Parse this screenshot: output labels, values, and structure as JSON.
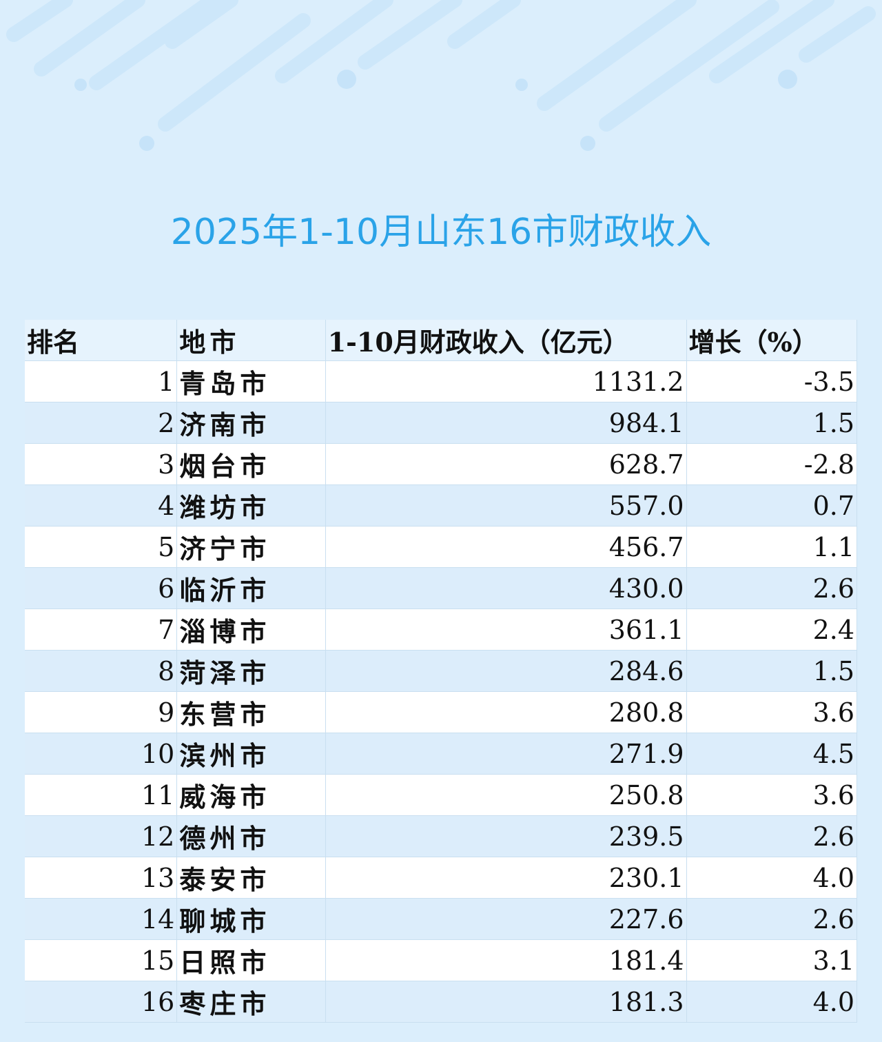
{
  "title": "2025年1-10月山东16市财政收入",
  "table": {
    "headers": [
      "排名",
      "地市",
      "1-10月财政收入（亿元）",
      "增长（%）"
    ],
    "rows": [
      {
        "rank": "1",
        "city": "青岛市",
        "revenue": "1131.2",
        "growth": "-3.5"
      },
      {
        "rank": "2",
        "city": "济南市",
        "revenue": "984.1",
        "growth": "1.5"
      },
      {
        "rank": "3",
        "city": "烟台市",
        "revenue": "628.7",
        "growth": "-2.8"
      },
      {
        "rank": "4",
        "city": "潍坊市",
        "revenue": "557.0",
        "growth": "0.7"
      },
      {
        "rank": "5",
        "city": "济宁市",
        "revenue": "456.7",
        "growth": "1.1"
      },
      {
        "rank": "6",
        "city": "临沂市",
        "revenue": "430.0",
        "growth": "2.6"
      },
      {
        "rank": "7",
        "city": "淄博市",
        "revenue": "361.1",
        "growth": "2.4"
      },
      {
        "rank": "8",
        "city": "菏泽市",
        "revenue": "284.6",
        "growth": "1.5"
      },
      {
        "rank": "9",
        "city": "东营市",
        "revenue": "280.8",
        "growth": "3.6"
      },
      {
        "rank": "10",
        "city": "滨州市",
        "revenue": "271.9",
        "growth": "4.5"
      },
      {
        "rank": "11",
        "city": "威海市",
        "revenue": "250.8",
        "growth": "3.6"
      },
      {
        "rank": "12",
        "city": "德州市",
        "revenue": "239.5",
        "growth": "2.6"
      },
      {
        "rank": "13",
        "city": "泰安市",
        "revenue": "230.1",
        "growth": "4.0"
      },
      {
        "rank": "14",
        "city": "聊城市",
        "revenue": "227.6",
        "growth": "2.6"
      },
      {
        "rank": "15",
        "city": "日照市",
        "revenue": "181.4",
        "growth": "3.1"
      },
      {
        "rank": "16",
        "city": "枣庄市",
        "revenue": "181.3",
        "growth": "4.0"
      }
    ]
  }
}
